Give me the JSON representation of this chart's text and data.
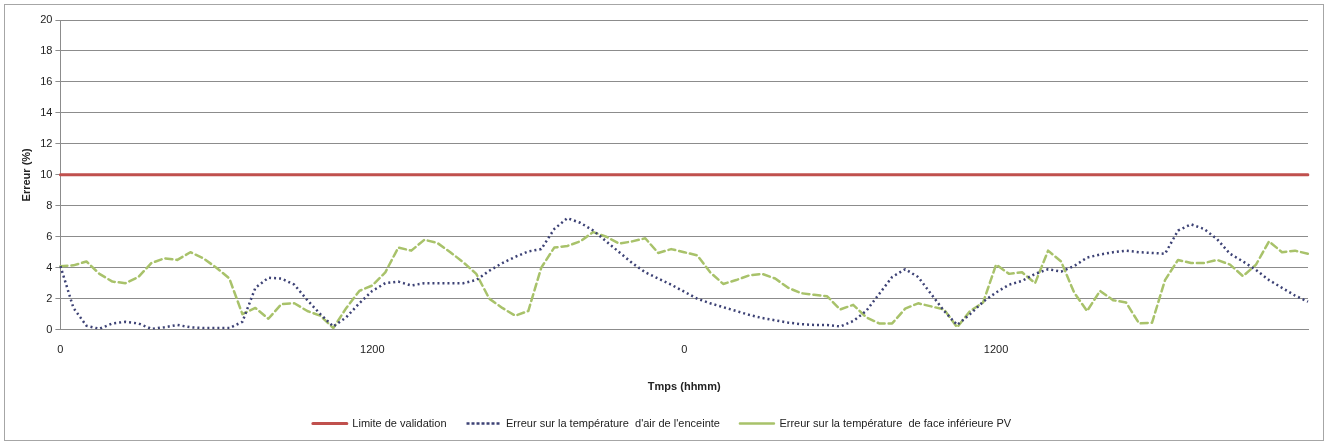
{
  "chart_data": {
    "type": "line",
    "xlabel": "Tmps (hhmm)",
    "ylabel": "Erreur (%)",
    "categories": [
      "0",
      null,
      null,
      null,
      null,
      null,
      null,
      null,
      null,
      null,
      null,
      null,
      null,
      null,
      null,
      null,
      null,
      null,
      null,
      null,
      null,
      null,
      null,
      null,
      "1200",
      null,
      null,
      null,
      null,
      null,
      null,
      null,
      null,
      null,
      null,
      null,
      null,
      null,
      null,
      null,
      null,
      null,
      null,
      null,
      null,
      null,
      null,
      null,
      "0",
      null,
      null,
      null,
      null,
      null,
      null,
      null,
      null,
      null,
      null,
      null,
      null,
      null,
      null,
      null,
      null,
      null,
      null,
      null,
      null,
      null,
      null,
      null,
      "1200",
      null,
      null,
      null,
      null,
      null,
      null,
      null,
      null,
      null,
      null,
      null,
      null,
      null,
      null,
      null,
      null,
      null,
      null,
      null,
      null,
      null,
      null,
      null,
      null
    ],
    "ylim": [
      0,
      20
    ],
    "yticks": [
      0,
      2,
      4,
      6,
      8,
      10,
      12,
      14,
      16,
      18,
      20
    ],
    "grid": "y",
    "legend": "bottom",
    "marker": "none",
    "series": [
      {
        "name": "Limite de validation",
        "color": "#c0504d",
        "line_style": "solid",
        "values": [
          10,
          10,
          10,
          10,
          10,
          10,
          10,
          10,
          10,
          10,
          10,
          10,
          10,
          10,
          10,
          10,
          10,
          10,
          10,
          10,
          10,
          10,
          10,
          10,
          10,
          10,
          10,
          10,
          10,
          10,
          10,
          10,
          10,
          10,
          10,
          10,
          10,
          10,
          10,
          10,
          10,
          10,
          10,
          10,
          10,
          10,
          10,
          10,
          10,
          10,
          10,
          10,
          10,
          10,
          10,
          10,
          10,
          10,
          10,
          10,
          10,
          10,
          10,
          10,
          10,
          10,
          10,
          10,
          10,
          10,
          10,
          10,
          10,
          10,
          10,
          10,
          10,
          10,
          10,
          10,
          10,
          10,
          10,
          10,
          10,
          10,
          10,
          10,
          10,
          10,
          10,
          10,
          10,
          10,
          10,
          10,
          10
        ]
      },
      {
        "name": "Erreur sur la température  d'air de l'enceinte",
        "color": "#3d4275",
        "line_style": "dotted",
        "values": [
          4.1,
          1.4,
          0.25,
          0.05,
          0.4,
          0.5,
          0.4,
          0.05,
          0.15,
          0.3,
          0.15,
          0.1,
          0.1,
          0.1,
          0.5,
          2.7,
          3.35,
          3.3,
          2.9,
          1.9,
          1.0,
          0.2,
          0.8,
          1.7,
          2.5,
          3.0,
          3.1,
          2.85,
          3.0,
          3.0,
          3.0,
          3.0,
          3.2,
          3.8,
          4.3,
          4.7,
          5.05,
          5.2,
          6.5,
          7.2,
          6.9,
          6.4,
          5.7,
          5.0,
          4.3,
          3.7,
          3.3,
          2.9,
          2.45,
          2.0,
          1.7,
          1.45,
          1.2,
          0.95,
          0.75,
          0.6,
          0.45,
          0.35,
          0.3,
          0.3,
          0.2,
          0.55,
          1.2,
          2.3,
          3.4,
          3.9,
          3.4,
          2.3,
          1.2,
          0.3,
          1.0,
          1.8,
          2.4,
          2.9,
          3.15,
          3.6,
          3.9,
          3.75,
          4.1,
          4.65,
          4.85,
          5.0,
          5.1,
          5.0,
          4.95,
          4.9,
          6.4,
          6.8,
          6.5,
          5.85,
          4.9,
          4.4,
          3.85,
          3.2,
          2.7,
          2.2,
          1.8
        ]
      },
      {
        "name": "Erreur sur la température  de face inférieure PV",
        "color": "#a8c26a",
        "line_style": "dashed",
        "values": [
          4.1,
          4.15,
          4.4,
          3.6,
          3.1,
          3.0,
          3.4,
          4.3,
          4.6,
          4.5,
          5.0,
          4.6,
          4.0,
          3.3,
          1.0,
          1.4,
          0.7,
          1.65,
          1.7,
          1.2,
          0.9,
          0.1,
          1.4,
          2.5,
          2.85,
          3.7,
          5.3,
          5.1,
          5.8,
          5.6,
          5.0,
          4.35,
          3.6,
          2.0,
          1.4,
          0.9,
          1.2,
          4.0,
          5.3,
          5.4,
          5.7,
          6.3,
          6.0,
          5.55,
          5.7,
          5.9,
          4.95,
          5.2,
          5.0,
          4.8,
          3.7,
          2.95,
          3.2,
          3.5,
          3.6,
          3.3,
          2.7,
          2.35,
          2.25,
          2.15,
          1.3,
          1.6,
          0.8,
          0.4,
          0.4,
          1.35,
          1.7,
          1.5,
          1.3,
          0.15,
          1.2,
          1.75,
          4.2,
          3.6,
          3.7,
          3.0,
          5.1,
          4.4,
          2.4,
          1.2,
          2.5,
          1.9,
          1.75,
          0.4,
          0.45,
          3.2,
          4.5,
          4.3,
          4.3,
          4.5,
          4.2,
          3.45,
          4.2,
          5.7,
          5.0,
          5.1,
          4.9
        ]
      }
    ]
  }
}
